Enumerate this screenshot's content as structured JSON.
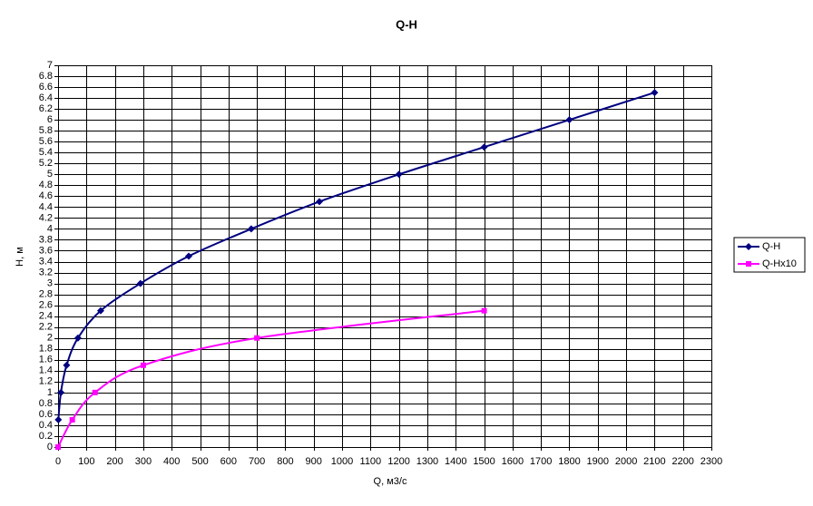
{
  "chart_data": {
    "type": "scatter",
    "title": "Q-H",
    "x_label": "Q, м3/с",
    "y_label": "H, м",
    "xlim": [
      0,
      2300
    ],
    "ylim": [
      0,
      7
    ],
    "xticks": [
      0,
      100,
      200,
      300,
      400,
      500,
      600,
      700,
      800,
      900,
      1000,
      1100,
      1200,
      1300,
      1400,
      1500,
      1600,
      1700,
      1800,
      1900,
      2000,
      2100,
      2200,
      2300
    ],
    "yticks": [
      0,
      0.2,
      0.4,
      0.6,
      0.8,
      1,
      1.2,
      1.4,
      1.6,
      1.8,
      2,
      2.2,
      2.4,
      2.6,
      2.8,
      3,
      3.2,
      3.4,
      3.6,
      3.8,
      4,
      4.2,
      4.4,
      4.6,
      4.8,
      5,
      5.2,
      5.4,
      5.6,
      5.8,
      6,
      6.2,
      6.4,
      6.6,
      6.8,
      7
    ],
    "grid": true,
    "legend": "right",
    "series": [
      {
        "name": "Q-H",
        "color": "#000080",
        "marker": "diamond",
        "x": [
          1,
          10,
          30,
          70,
          150,
          290,
          460,
          680,
          920,
          1200,
          1500,
          1800,
          2100
        ],
        "values": [
          0.5,
          1,
          1.5,
          2,
          2.5,
          3,
          3.5,
          4,
          4.5,
          5,
          5.5,
          6,
          6.5
        ]
      },
      {
        "name": "Q-Hx10",
        "color": "#ff00ff",
        "marker": "square",
        "x": [
          0,
          50,
          130,
          300,
          700,
          1500
        ],
        "values": [
          0,
          0.5,
          1,
          1.5,
          2,
          2.5
        ]
      }
    ]
  }
}
